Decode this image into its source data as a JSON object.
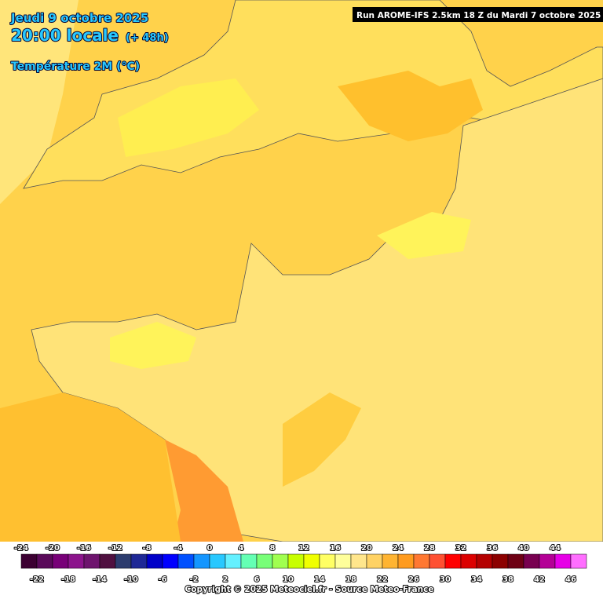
{
  "header": {
    "date": "Jeudi 9 octobre 2025",
    "time": "20:00 locale",
    "offset": "(+ 48h)",
    "variable": "Température 2M (°C)",
    "run": "Run AROME-IFS 2.5km 18 Z du Mardi 7 octobre 2025"
  },
  "legend": {
    "values": [
      -24,
      -22,
      -20,
      -18,
      -16,
      -14,
      -12,
      -10,
      -8,
      -6,
      -4,
      -2,
      0,
      2,
      4,
      6,
      8,
      10,
      12,
      14,
      16,
      18,
      20,
      22,
      24,
      26,
      28,
      30,
      32,
      34,
      36,
      38,
      40,
      42,
      44,
      46
    ],
    "colors": [
      "#3c0032",
      "#5a0a5a",
      "#780078",
      "#8c148c",
      "#6e146e",
      "#501040",
      "#2d3c6e",
      "#1e2896",
      "#0000c8",
      "#0000ff",
      "#0050ff",
      "#1496ff",
      "#28c8ff",
      "#64f0ff",
      "#64ffb4",
      "#78ff78",
      "#a0ff50",
      "#c8ff00",
      "#f0ff00",
      "#ffff64",
      "#ffff9b",
      "#ffe68c",
      "#ffd264",
      "#ffb432",
      "#ff9b1e",
      "#ff7832",
      "#ff5032",
      "#ff0000",
      "#dc0000",
      "#b40000",
      "#8c0000",
      "#6e0014",
      "#780050",
      "#b40096",
      "#e600e6",
      "#ff6eff"
    ]
  },
  "footer": "Copyright © 2025 Meteociel.fr - Source Meteo-France"
}
